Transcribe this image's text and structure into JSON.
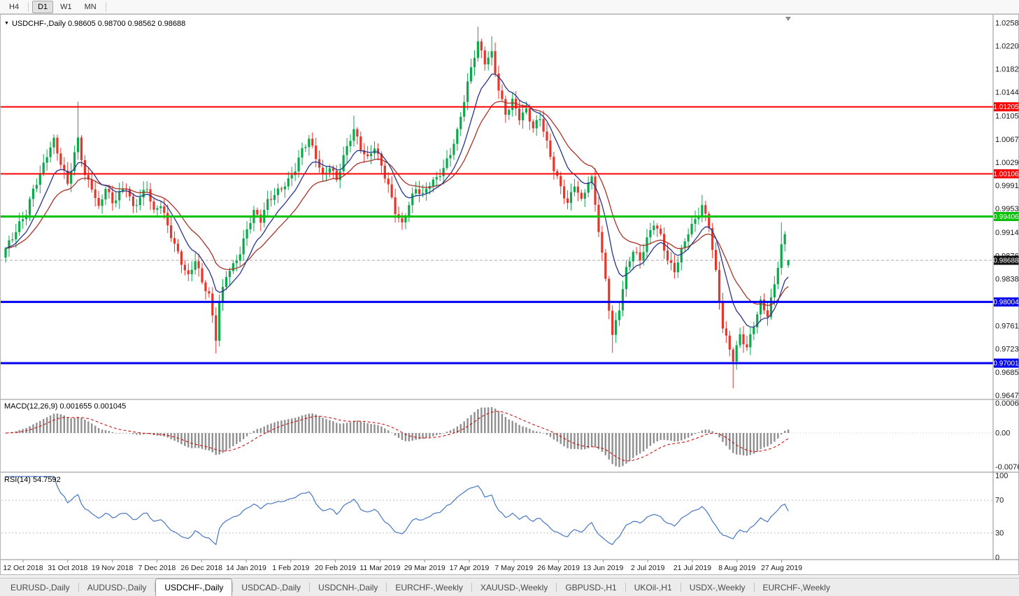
{
  "toolbar": {
    "buttons": [
      {
        "label": "H4",
        "active": false
      },
      {
        "label": "D1",
        "active": true
      },
      {
        "label": "W1",
        "active": false
      },
      {
        "label": "MN",
        "active": false
      }
    ]
  },
  "chart_header": {
    "line": "USDCHF-,Daily 0.98605 0.98700 0.98562 0.98688",
    "symbol": "USDCHF-,Daily",
    "open": "0.98605",
    "high": "0.98700",
    "low": "0.98562",
    "close": "0.98688"
  },
  "price_axis": {
    "labels": [
      "1.02580",
      "1.02200",
      "1.01820",
      "1.01440",
      "1.01050",
      "1.00670",
      "1.00290",
      "0.99910",
      "0.99530",
      "0.99140",
      "0.98760",
      "0.98380",
      "0.97610",
      "0.97230",
      "0.96850",
      "0.96470"
    ],
    "current_price": "0.98688"
  },
  "macd_panel": {
    "label": "MACD(12,26,9) 0.001655 0.001045",
    "axis_labels": [
      "0.0006286",
      "0.00",
      "-0.00762"
    ]
  },
  "rsi_panel": {
    "label": "RSI(14) 54.7592",
    "axis_labels": [
      "100",
      "70",
      "30",
      "0"
    ]
  },
  "date_axis": [
    "12 Oct 2018",
    "31 Oct 2018",
    "19 Nov 2018",
    "7 Dec 2018",
    "26 Dec 2018",
    "14 Jan 2019",
    "1 Feb 2019",
    "20 Feb 2019",
    "11 Mar 2019",
    "29 Mar 2019",
    "17 Apr 2019",
    "7 May 2019",
    "26 May 2019",
    "13 Jun 2019",
    "2 Jul 2019",
    "21 Jul 2019",
    "8 Aug 2019",
    "27 Aug 2019"
  ],
  "tabs": [
    {
      "label": "EURUSD-,Daily",
      "active": false
    },
    {
      "label": "AUDUSD-,Daily",
      "active": false
    },
    {
      "label": "USDCHF-,Daily",
      "active": true
    },
    {
      "label": "USDCAD-,Daily",
      "active": false
    },
    {
      "label": "USDCNH-,Daily",
      "active": false
    },
    {
      "label": "EURCHF-,Weekly",
      "active": false
    },
    {
      "label": "XAUUSD-,Weekly",
      "active": false
    },
    {
      "label": "GBPUSD-,H1",
      "active": false
    },
    {
      "label": "UKOil-,H1",
      "active": false
    },
    {
      "label": "USDX-,Weekly",
      "active": false
    },
    {
      "label": "EURCHF-,Weekly",
      "active": false
    }
  ],
  "colors": {
    "bull": "#0BA94C",
    "bear": "#E8352A",
    "ma_fast": "#27348F",
    "ma_slow": "#A93226",
    "macd_hist": "#8F8F8F",
    "macd_signal": "#CC0000",
    "rsi_line": "#4777C4",
    "level_red": "#FE0000",
    "level_green": "#00C200",
    "level_blue": "#0000F0",
    "current_price_bg": "#111111",
    "axis_text": "#1A1A1A"
  },
  "chart_data": {
    "type": "candlestick",
    "symbol": "USDCHF",
    "timeframe": "Daily",
    "title": "USDCHF-,Daily",
    "x_labels": [
      "12 Oct 2018",
      "31 Oct 2018",
      "19 Nov 2018",
      "7 Dec 2018",
      "26 Dec 2018",
      "14 Jan 2019",
      "1 Feb 2019",
      "20 Feb 2019",
      "11 Mar 2019",
      "29 Mar 2019",
      "17 Apr 2019",
      "7 May 2019",
      "26 May 2019",
      "13 Jun 2019",
      "2 Jul 2019",
      "21 Jul 2019",
      "8 Aug 2019",
      "27 Aug 2019"
    ],
    "price_range": [
      0.9644,
      1.0267
    ],
    "bar_count": 228,
    "ohlc_current": {
      "open": 0.98605,
      "high": 0.987,
      "low": 0.98562,
      "close": 0.98688
    },
    "close_anchors": [
      [
        0,
        0.9885
      ],
      [
        2,
        0.9905
      ],
      [
        4,
        0.993
      ],
      [
        6,
        0.995
      ],
      [
        8,
        0.9988
      ],
      [
        10,
        1.001
      ],
      [
        12,
        1.004
      ],
      [
        14,
        1.0062
      ],
      [
        16,
        1.0025
      ],
      [
        18,
        0.9995
      ],
      [
        20,
        1.0045
      ],
      [
        21,
        1.0072
      ],
      [
        23,
        1.001
      ],
      [
        25,
        0.999
      ],
      [
        27,
        0.9952
      ],
      [
        29,
        0.9985
      ],
      [
        31,
        0.996
      ],
      [
        33,
        0.9978
      ],
      [
        35,
        0.9992
      ],
      [
        37,
        0.9958
      ],
      [
        39,
        0.9975
      ],
      [
        41,
        0.9988
      ],
      [
        43,
        0.9945
      ],
      [
        45,
        0.9958
      ],
      [
        47,
        0.9922
      ],
      [
        49,
        0.9895
      ],
      [
        51,
        0.9868
      ],
      [
        53,
        0.9845
      ],
      [
        55,
        0.9872
      ],
      [
        57,
        0.9832
      ],
      [
        59,
        0.9808
      ],
      [
        61,
        0.9738
      ],
      [
        62,
        0.9795
      ],
      [
        64,
        0.9845
      ],
      [
        66,
        0.9862
      ],
      [
        68,
        0.9885
      ],
      [
        70,
        0.9922
      ],
      [
        72,
        0.9948
      ],
      [
        74,
        0.9932
      ],
      [
        76,
        0.9962
      ],
      [
        78,
        0.9975
      ],
      [
        80,
        0.9988
      ],
      [
        82,
        1.0002
      ],
      [
        84,
        1.0022
      ],
      [
        86,
        1.0052
      ],
      [
        88,
        1.0066
      ],
      [
        90,
        1.0035
      ],
      [
        92,
        1.0002
      ],
      [
        94,
        1.0022
      ],
      [
        96,
        1.0002
      ],
      [
        98,
        1.0042
      ],
      [
        100,
        1.0072
      ],
      [
        101,
        1.0085
      ],
      [
        103,
        1.0052
      ],
      [
        105,
        1.0032
      ],
      [
        107,
        1.0052
      ],
      [
        109,
        1.0022
      ],
      [
        111,
        0.9992
      ],
      [
        113,
        0.9952
      ],
      [
        115,
        0.993
      ],
      [
        117,
        0.9962
      ],
      [
        119,
        0.9985
      ],
      [
        121,
        0.9972
      ],
      [
        123,
        0.9992
      ],
      [
        125,
        1.0002
      ],
      [
        127,
        1.0022
      ],
      [
        129,
        1.0048
      ],
      [
        131,
        1.0082
      ],
      [
        133,
        1.0132
      ],
      [
        135,
        1.0182
      ],
      [
        137,
        1.0222
      ],
      [
        139,
        1.0192
      ],
      [
        141,
        1.0208
      ],
      [
        143,
        1.0152
      ],
      [
        145,
        1.0112
      ],
      [
        147,
        1.0132
      ],
      [
        149,
        1.0102
      ],
      [
        151,
        1.0112
      ],
      [
        153,
        1.0082
      ],
      [
        155,
        1.0102
      ],
      [
        157,
        1.0062
      ],
      [
        159,
        1.0022
      ],
      [
        161,
        0.9992
      ],
      [
        163,
        0.9962
      ],
      [
        165,
        0.9992
      ],
      [
        167,
        0.9962
      ],
      [
        169,
        0.9996
      ],
      [
        170,
        1.0
      ],
      [
        172,
        0.992
      ],
      [
        174,
        0.984
      ],
      [
        176,
        0.9748
      ],
      [
        178,
        0.9792
      ],
      [
        180,
        0.9852
      ],
      [
        182,
        0.9882
      ],
      [
        184,
        0.9866
      ],
      [
        186,
        0.9902
      ],
      [
        188,
        0.9932
      ],
      [
        190,
        0.9912
      ],
      [
        192,
        0.9872
      ],
      [
        194,
        0.9852
      ],
      [
        196,
        0.9882
      ],
      [
        198,
        0.9912
      ],
      [
        200,
        0.9932
      ],
      [
        202,
        0.9958
      ],
      [
        204,
        0.9928
      ],
      [
        206,
        0.9852
      ],
      [
        208,
        0.9762
      ],
      [
        210,
        0.9722
      ],
      [
        211,
        0.9705
      ],
      [
        213,
        0.9742
      ],
      [
        215,
        0.9722
      ],
      [
        217,
        0.9762
      ],
      [
        219,
        0.9802
      ],
      [
        221,
        0.9782
      ],
      [
        223,
        0.9832
      ],
      [
        225,
        0.9892
      ],
      [
        226,
        0.9908
      ],
      [
        227,
        0.98688
      ]
    ],
    "wick_overrides": {
      "21": {
        "high": 1.0129
      },
      "61": {
        "low": 0.9716
      },
      "101": {
        "high": 1.0106
      },
      "137": {
        "high": 1.0252
      },
      "141": {
        "high": 1.0236
      },
      "170": {
        "high": 1.0009
      },
      "176": {
        "low": 0.9717
      },
      "202": {
        "high": 0.9976
      },
      "211": {
        "low": 0.9659
      },
      "225": {
        "high": 0.9931
      }
    },
    "horizontal_levels": [
      {
        "value": 1.01205,
        "label": "1.01205",
        "color": "#FE0000",
        "width": 2
      },
      {
        "value": 1.00106,
        "label": "1.00106",
        "color": "#FE0000",
        "width": 2
      },
      {
        "value": 0.99406,
        "label": "0.99406",
        "color": "#00C200",
        "width": 3
      },
      {
        "value": 0.98004,
        "label": "0.98004",
        "color": "#0000F0",
        "width": 3
      },
      {
        "value": 0.97001,
        "label": "0.97001",
        "color": "#0000F0",
        "width": 3
      }
    ],
    "current_price_line": {
      "value": 0.98688,
      "label": "0.98688"
    },
    "indicators": {
      "macd": {
        "fast": 12,
        "slow": 26,
        "signal": 9,
        "current_macd": 0.001655,
        "current_signal": 0.001045
      },
      "rsi": {
        "period": 14,
        "current": 54.7592,
        "levels": [
          70,
          30
        ]
      }
    }
  }
}
